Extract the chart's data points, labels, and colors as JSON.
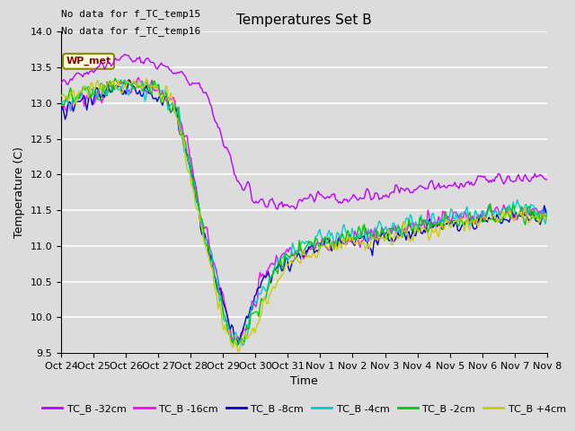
{
  "title": "Temperatures Set B",
  "xlabel": "Time",
  "ylabel": "Temperature (C)",
  "ylim": [
    9.5,
    14.0
  ],
  "yticks": [
    9.5,
    10.0,
    10.5,
    11.0,
    11.5,
    12.0,
    12.5,
    13.0,
    13.5,
    14.0
  ],
  "annotations": [
    "No data for f_TC_temp15",
    "No data for f_TC_temp16"
  ],
  "wp_met_label": "WP_met",
  "xtick_labels": [
    "Oct 24",
    "Oct 25",
    "Oct 26",
    "Oct 27",
    "Oct 28",
    "Oct 29",
    "Oct 30",
    "Oct 31",
    "Nov 1",
    "Nov 2",
    "Nov 3",
    "Nov 4",
    "Nov 5",
    "Nov 6",
    "Nov 7",
    "Nov 8"
  ],
  "series_labels": [
    "TC_B -32cm",
    "TC_B -16cm",
    "TC_B -8cm",
    "TC_B -4cm",
    "TC_B -2cm",
    "TC_B +4cm"
  ],
  "series_colors": [
    "#bb00ff",
    "#ff00ff",
    "#0000cc",
    "#00cccc",
    "#00cc00",
    "#cccc00"
  ],
  "background_color": "#dcdcdc",
  "grid_color": "#ffffff",
  "line_width": 1.0,
  "figsize": [
    6.4,
    4.8
  ],
  "dpi": 100
}
